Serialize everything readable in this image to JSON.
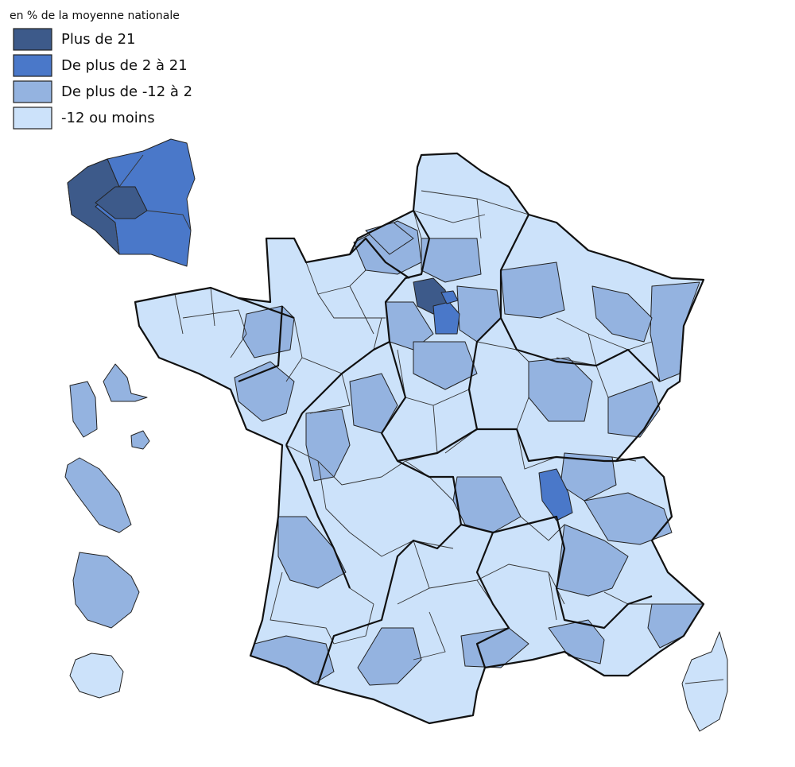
{
  "legend": {
    "title": "en % de la moyenne nationale",
    "items": [
      {
        "label": "Plus de 21",
        "color": "#3d5a8a"
      },
      {
        "label": "De plus de 2 à 21",
        "color": "#4a78c9"
      },
      {
        "label": "De plus de -12 à 2",
        "color": "#94b3e0"
      },
      {
        "label": "-12 ou moins",
        "color": "#cce2fa"
      }
    ]
  }
}
